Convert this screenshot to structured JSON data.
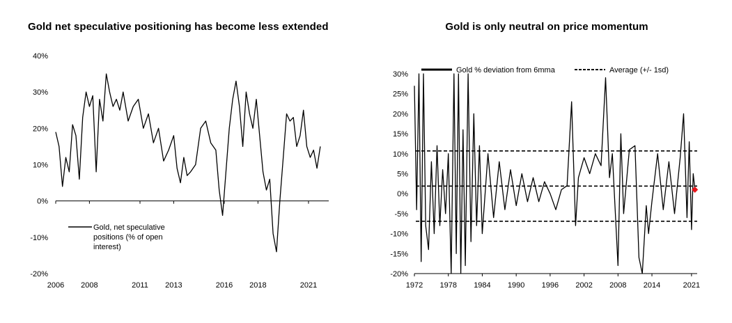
{
  "chart_data": [
    {
      "type": "line",
      "title": "Gold net speculative positioning has become less extended",
      "xlabel": "",
      "ylabel": "",
      "y_unit": "%",
      "xlim": [
        2006,
        2022.2
      ],
      "ylim": [
        -20,
        40
      ],
      "x_tick_labels": [
        "2006",
        "2008",
        "2011",
        "2013",
        "2016",
        "2018",
        "2021"
      ],
      "x_tick_values": [
        2006,
        2008,
        2011,
        2013,
        2016,
        2018,
        2021
      ],
      "y_tick_labels": [
        "40%",
        "30%",
        "20%",
        "10%",
        "0%",
        "-10%",
        "-20%"
      ],
      "y_tick_values": [
        40,
        30,
        20,
        10,
        0,
        -10,
        -20
      ],
      "grid": false,
      "legend_position": "bottom-left",
      "series": [
        {
          "name": "Gold, net speculative positions (% of open interest)",
          "legend_lines": [
            "Gold, net speculative",
            "positions (% of open",
            "interest)"
          ],
          "color": "#000000",
          "x": [
            2006.0,
            2006.2,
            2006.4,
            2006.6,
            2006.8,
            2007.0,
            2007.2,
            2007.4,
            2007.6,
            2007.8,
            2008.0,
            2008.2,
            2008.4,
            2008.6,
            2008.8,
            2009.0,
            2009.2,
            2009.4,
            2009.6,
            2009.8,
            2010.0,
            2010.3,
            2010.6,
            2010.9,
            2011.2,
            2011.5,
            2011.8,
            2012.1,
            2012.4,
            2012.7,
            2013.0,
            2013.2,
            2013.4,
            2013.6,
            2013.8,
            2014.0,
            2014.3,
            2014.6,
            2014.9,
            2015.2,
            2015.5,
            2015.7,
            2015.9,
            2016.1,
            2016.3,
            2016.5,
            2016.7,
            2016.9,
            2017.1,
            2017.3,
            2017.5,
            2017.7,
            2017.9,
            2018.1,
            2018.3,
            2018.5,
            2018.7,
            2018.9,
            2019.1,
            2019.3,
            2019.5,
            2019.7,
            2019.9,
            2020.1,
            2020.3,
            2020.5,
            2020.7,
            2020.9,
            2021.1,
            2021.3,
            2021.5,
            2021.7
          ],
          "values": [
            19,
            15,
            4,
            12,
            8,
            21,
            18,
            6,
            23,
            30,
            26,
            29,
            8,
            28,
            22,
            35,
            30,
            26,
            28,
            25,
            30,
            22,
            26,
            28,
            20,
            24,
            16,
            20,
            11,
            14,
            18,
            9,
            5,
            12,
            7,
            8,
            10,
            20,
            22,
            16,
            14,
            3,
            -4,
            8,
            20,
            28,
            33,
            26,
            15,
            30,
            24,
            20,
            28,
            18,
            8,
            3,
            6,
            -9,
            -14,
            0,
            12,
            24,
            22,
            23,
            15,
            18,
            25,
            15,
            12,
            14,
            9,
            15
          ]
        }
      ]
    },
    {
      "type": "line",
      "title": "Gold is only neutral on price momentum",
      "xlabel": "",
      "ylabel": "",
      "y_unit": "%",
      "xlim": [
        1972,
        2022
      ],
      "ylim": [
        -20,
        30
      ],
      "x_tick_labels": [
        "1972",
        "1978",
        "1984",
        "1990",
        "1996",
        "2002",
        "2008",
        "2014",
        "2021"
      ],
      "x_tick_values": [
        1972,
        1978,
        1984,
        1990,
        1996,
        2002,
        2008,
        2014,
        2021
      ],
      "y_tick_labels": [
        "30%",
        "25%",
        "20%",
        "15%",
        "10%",
        "5%",
        "0%",
        "-5%",
        "-10%",
        "-15%",
        "-20%"
      ],
      "y_tick_values": [
        30,
        25,
        20,
        15,
        10,
        5,
        0,
        -5,
        -10,
        -15,
        -20
      ],
      "grid": false,
      "legend_position": "top",
      "series": [
        {
          "name": "Gold % deviation from 6mma",
          "color": "#000000",
          "x": [
            1972.0,
            1972.4,
            1972.8,
            1973.2,
            1973.6,
            1974.0,
            1974.5,
            1975.0,
            1975.5,
            1976.0,
            1976.5,
            1977.0,
            1977.5,
            1978.0,
            1978.5,
            1979.0,
            1979.4,
            1979.8,
            1980.2,
            1980.6,
            1981.0,
            1981.5,
            1982.0,
            1982.5,
            1983.0,
            1983.5,
            1984.0,
            1985.0,
            1986.0,
            1987.0,
            1988.0,
            1989.0,
            1990.0,
            1991.0,
            1992.0,
            1993.0,
            1994.0,
            1995.0,
            1996.0,
            1997.0,
            1998.0,
            1999.0,
            1999.8,
            2000.5,
            2001.0,
            2002.0,
            2003.0,
            2004.0,
            2005.0,
            2005.8,
            2006.5,
            2007.0,
            2008.0,
            2008.5,
            2009.0,
            2010.0,
            2011.0,
            2011.7,
            2012.3,
            2013.0,
            2013.4,
            2014.0,
            2015.0,
            2016.0,
            2017.0,
            2018.0,
            2019.0,
            2019.6,
            2020.2,
            2020.6,
            2021.0,
            2021.3,
            2021.6
          ],
          "values": [
            27,
            -4,
            30,
            -17,
            30,
            -8,
            -14,
            8,
            -10,
            12,
            -8,
            6,
            -5,
            10,
            -20,
            30,
            -15,
            30,
            -20,
            16,
            -18,
            30,
            -12,
            20,
            -8,
            12,
            -10,
            10,
            -6,
            8,
            -4,
            6,
            -3,
            5,
            -2,
            4,
            -2,
            3,
            0,
            -4,
            1,
            2,
            23,
            -8,
            4,
            9,
            5,
            10,
            7,
            29,
            4,
            10,
            -18,
            15,
            -5,
            11,
            12,
            -16,
            -20,
            -3,
            -10,
            -2,
            10,
            -4,
            8,
            -5,
            9,
            20,
            -6,
            13,
            -9,
            5,
            1
          ]
        },
        {
          "name": "Average (+/- 1sd)",
          "color": "#000000",
          "dashed": true,
          "x": [
            1972,
            2022
          ],
          "mean": 1.9,
          "upper": 10.7,
          "lower": -6.9
        }
      ],
      "latest_marker": {
        "x": 2021.6,
        "value": 1,
        "color": "#e8141b"
      }
    }
  ]
}
